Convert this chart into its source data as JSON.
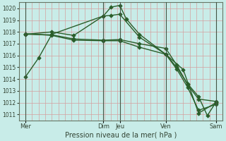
{
  "xlabel": "Pression niveau de la mer( hPa )",
  "bg_color": "#c8ece8",
  "grid_color": "#d4a0a0",
  "line_color": "#2a5e2a",
  "ylim": [
    1010.5,
    1020.5
  ],
  "yticks": [
    1011,
    1012,
    1013,
    1014,
    1015,
    1016,
    1017,
    1018,
    1019,
    1020
  ],
  "xlim": [
    0,
    9.3
  ],
  "xtick_labels": [
    "Mer",
    "Dim",
    "Jeu",
    "Ven",
    "Sam"
  ],
  "xtick_positions": [
    0.3,
    3.85,
    4.6,
    6.7,
    9.0
  ],
  "vline_positions": [
    0.3,
    3.85,
    4.6,
    6.7,
    9.0
  ],
  "lines": [
    {
      "x": [
        0.3,
        0.9,
        1.5,
        3.85,
        4.2,
        4.6,
        4.9,
        5.5,
        6.7,
        7.5,
        8.2,
        9.0
      ],
      "y": [
        1014.2,
        1015.8,
        1017.8,
        1019.35,
        1020.1,
        1020.25,
        1019.1,
        1017.8,
        1016.1,
        1014.8,
        1011.1,
        1012.0
      ]
    },
    {
      "x": [
        0.3,
        1.5,
        2.5,
        3.85,
        4.2,
        4.6,
        5.5,
        6.7,
        7.2,
        7.7,
        8.2,
        8.6,
        9.0
      ],
      "y": [
        1017.8,
        1018.0,
        1017.7,
        1019.35,
        1019.4,
        1019.5,
        1017.55,
        1016.1,
        1015.0,
        1013.6,
        1012.5,
        1010.9,
        1012.05
      ]
    },
    {
      "x": [
        0.3,
        1.5,
        2.5,
        3.85,
        4.6,
        5.5,
        6.7,
        7.2,
        7.7,
        8.2,
        9.0
      ],
      "y": [
        1017.8,
        1017.75,
        1017.4,
        1017.3,
        1017.35,
        1017.0,
        1016.6,
        1015.2,
        1013.5,
        1012.3,
        1012.1
      ]
    },
    {
      "x": [
        0.3,
        1.5,
        2.5,
        3.85,
        4.6,
        5.5,
        6.7,
        7.2,
        7.7,
        8.2,
        9.0
      ],
      "y": [
        1017.85,
        1017.7,
        1017.3,
        1017.25,
        1017.25,
        1016.7,
        1016.1,
        1014.85,
        1013.3,
        1011.35,
        1011.85
      ]
    }
  ],
  "marker": "D",
  "markersize": 2.8,
  "linewidth": 1.0
}
